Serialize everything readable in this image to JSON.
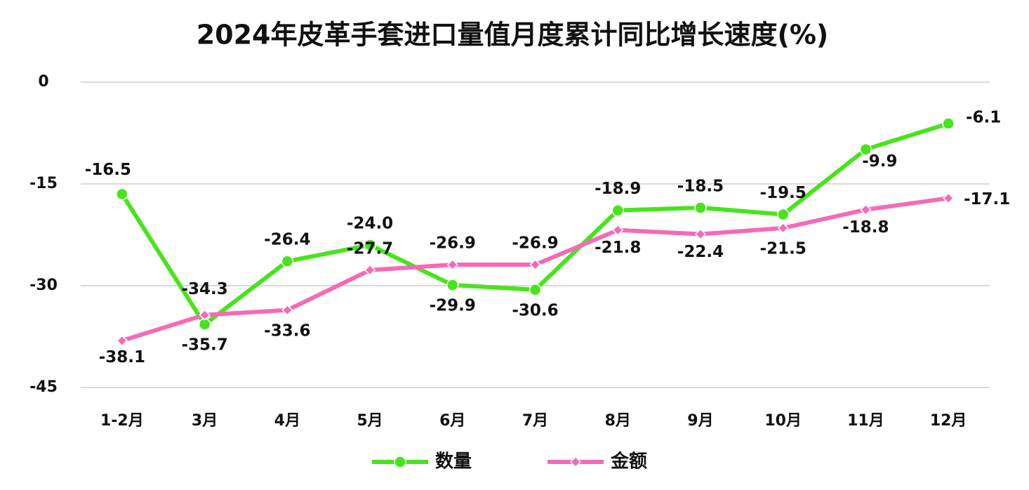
{
  "chart_data": {
    "type": "line",
    "title": "2024年皮革手套进口量值月度累计同比增长速度(%)",
    "categories": [
      "1-2月",
      "3月",
      "4月",
      "5月",
      "6月",
      "7月",
      "8月",
      "9月",
      "10月",
      "11月",
      "12月"
    ],
    "series": [
      {
        "name": "数量",
        "color": "#47e41c",
        "marker": "circle",
        "values": [
          -16.5,
          -35.7,
          -26.4,
          -24.0,
          -29.9,
          -30.6,
          -18.9,
          -18.5,
          -19.5,
          -9.9,
          -6.1
        ],
        "value_labels": [
          "-16.5",
          "-35.7",
          "-26.4",
          "-24.0",
          "-29.9",
          "-30.6",
          "-18.9",
          "-18.5",
          "-19.5",
          "-9.9",
          "-6.1"
        ]
      },
      {
        "name": "金额",
        "color": "#f46ab6",
        "marker": "diamond",
        "values": [
          -38.1,
          -34.3,
          -33.6,
          -27.7,
          -26.9,
          -26.9,
          -21.8,
          -22.4,
          -21.5,
          -18.8,
          -17.1
        ],
        "value_labels": [
          "-38.1",
          "-34.3",
          "-33.6",
          "-27.7",
          "-26.9",
          "-26.9",
          "-21.8",
          "-22.4",
          "-21.5",
          "-18.8",
          "-17.1"
        ]
      }
    ],
    "ylim": [
      -45,
      0
    ],
    "yticks": [
      0,
      -15,
      -30,
      -45
    ],
    "grid": true
  }
}
